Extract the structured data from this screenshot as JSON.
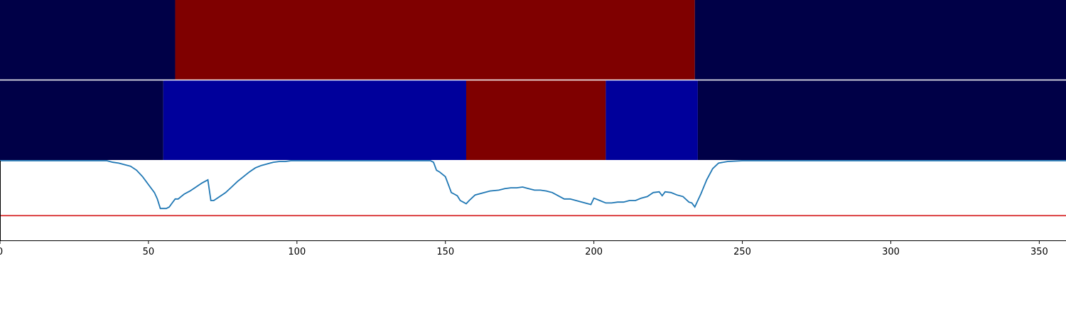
{
  "chart_data": {
    "type": "heatmap",
    "title": "",
    "xlabel": "",
    "ylabel": "",
    "xlim": [
      0,
      359
    ],
    "x_ticks": [
      0,
      50,
      100,
      150,
      200,
      250,
      300,
      350
    ],
    "colors": {
      "dark_navy": "#000047",
      "blue": "#00009b",
      "dark_red": "#7f0000",
      "line": "#1f77b4",
      "threshold": "#d62728",
      "frame": "#000000"
    },
    "bands": [
      {
        "segments": [
          {
            "start": 0,
            "end": 59,
            "color": "#000047"
          },
          {
            "start": 59,
            "end": 234,
            "color": "#7f0000"
          },
          {
            "start": 234,
            "end": 359,
            "color": "#000047"
          }
        ]
      },
      {
        "segments": [
          {
            "start": 0,
            "end": 55,
            "color": "#000047"
          },
          {
            "start": 55,
            "end": 157,
            "color": "#00009b"
          },
          {
            "start": 157,
            "end": 204,
            "color": "#7f0000"
          },
          {
            "start": 204,
            "end": 235,
            "color": "#00009b"
          },
          {
            "start": 235,
            "end": 359,
            "color": "#000047"
          }
        ]
      }
    ],
    "line_panel": {
      "ylim": [
        0,
        1
      ],
      "threshold": 0.31,
      "x": [
        0,
        36,
        38,
        40,
        42,
        44,
        46,
        48,
        50,
        52,
        53,
        54,
        55,
        56,
        57,
        58,
        59,
        60,
        62,
        64,
        66,
        68,
        70,
        71,
        72,
        74,
        76,
        78,
        80,
        82,
        84,
        86,
        88,
        90,
        92,
        94,
        96,
        98,
        100,
        105,
        110,
        120,
        130,
        140,
        145,
        146,
        147,
        148,
        150,
        151,
        152,
        153,
        154,
        155,
        156,
        157,
        158,
        160,
        165,
        168,
        170,
        172,
        174,
        176,
        178,
        180,
        182,
        184,
        186,
        188,
        190,
        192,
        194,
        196,
        198,
        199,
        200,
        202,
        204,
        206,
        208,
        210,
        212,
        214,
        216,
        218,
        220,
        222,
        223,
        224,
        226,
        228,
        230,
        232,
        233,
        234,
        236,
        238,
        240,
        242,
        245,
        250,
        260,
        280,
        300,
        320,
        340,
        359
      ],
      "y": [
        1.0,
        1.0,
        0.98,
        0.97,
        0.95,
        0.93,
        0.88,
        0.8,
        0.7,
        0.6,
        0.52,
        0.4,
        0.4,
        0.4,
        0.42,
        0.47,
        0.52,
        0.52,
        0.58,
        0.62,
        0.67,
        0.72,
        0.76,
        0.5,
        0.5,
        0.55,
        0.6,
        0.67,
        0.74,
        0.8,
        0.86,
        0.91,
        0.94,
        0.96,
        0.98,
        0.99,
        0.99,
        1.0,
        1.0,
        1.0,
        1.0,
        1.0,
        1.0,
        1.0,
        1.0,
        0.98,
        0.88,
        0.86,
        0.8,
        0.7,
        0.6,
        0.58,
        0.56,
        0.5,
        0.48,
        0.46,
        0.5,
        0.57,
        0.62,
        0.63,
        0.65,
        0.66,
        0.66,
        0.67,
        0.65,
        0.63,
        0.63,
        0.62,
        0.6,
        0.56,
        0.52,
        0.52,
        0.5,
        0.48,
        0.46,
        0.45,
        0.53,
        0.5,
        0.47,
        0.47,
        0.48,
        0.48,
        0.5,
        0.5,
        0.53,
        0.55,
        0.6,
        0.61,
        0.56,
        0.61,
        0.6,
        0.57,
        0.55,
        0.48,
        0.47,
        0.42,
        0.58,
        0.76,
        0.9,
        0.97,
        0.99,
        1.0,
        1.0,
        1.0,
        1.0,
        1.0,
        1.0,
        1.0
      ]
    }
  }
}
